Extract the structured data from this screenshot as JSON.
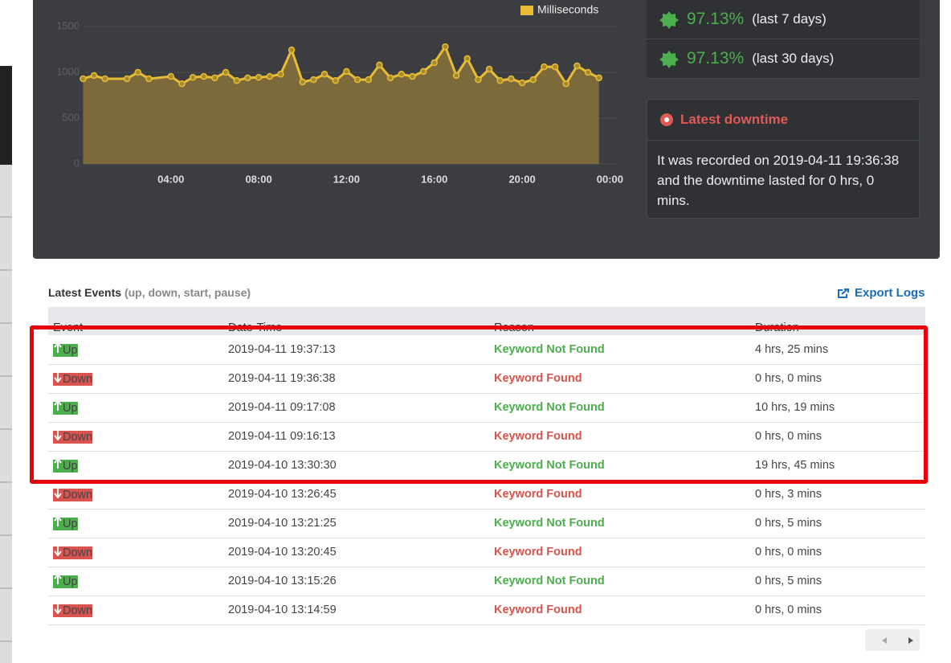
{
  "chart_data": {
    "type": "area",
    "series": [
      {
        "name": "Milliseconds",
        "color": "#e8bd35",
        "fill": "#7c6a3b",
        "values": [
          930,
          965,
          930,
          930,
          1000,
          930,
          955,
          875,
          945,
          955,
          940,
          1000,
          910,
          940,
          945,
          955,
          980,
          1245,
          895,
          920,
          980,
          910,
          1010,
          920,
          920,
          1080,
          940,
          980,
          955,
          1010,
          1105,
          1280,
          965,
          1150,
          920,
          1035,
          910,
          930,
          885,
          920,
          1060,
          1060,
          875,
          1070,
          1000,
          940
        ]
      }
    ],
    "x": [
      0,
      0.5,
      1,
      2,
      2.5,
      3,
      4,
      4.5,
      5,
      5.5,
      6,
      6.5,
      7,
      7.5,
      8,
      8.5,
      9,
      9.5,
      10,
      10.5,
      11,
      11.5,
      12,
      12.5,
      13,
      13.5,
      14,
      14.5,
      15,
      15.5,
      16,
      16.5,
      17,
      17.5,
      18,
      18.5,
      19,
      19.5,
      20,
      20.5,
      21,
      21.5,
      22,
      22.5,
      23,
      23.5
    ],
    "xlim": [
      0,
      24
    ],
    "xticks": [
      {
        "value": 4,
        "label": "04:00"
      },
      {
        "value": 8,
        "label": "08:00"
      },
      {
        "value": 12,
        "label": "12:00"
      },
      {
        "value": 16,
        "label": "16:00"
      },
      {
        "value": 20,
        "label": "20:00"
      },
      {
        "value": 24,
        "label": "00:00"
      }
    ],
    "ylim": [
      0,
      1500
    ],
    "yticks": [
      0,
      500,
      1000,
      1500
    ],
    "grid": true
  },
  "uptime": [
    {
      "value": "97.13%",
      "period": "(last 7 days)"
    },
    {
      "value": "97.13%",
      "period": "(last 30 days)"
    }
  ],
  "downtime": {
    "title": "Latest downtime",
    "text": "It was recorded on 2019-04-11 19:36:38 and the downtime lasted for 0 hrs, 0 mins."
  },
  "events": {
    "title": "Latest Events",
    "subtitle": "(up, down, start, pause)",
    "export": "Export Logs",
    "columns": [
      "Event",
      "Date-Time",
      "Reason",
      "Duration"
    ],
    "rows": [
      [
        "Up",
        "2019-04-11 19:37:13",
        "Keyword Not Found",
        "4 hrs, 25 mins"
      ],
      [
        "Down",
        "2019-04-11 19:36:38",
        "Keyword Found",
        "0 hrs, 0 mins"
      ],
      [
        "Up",
        "2019-04-11 09:17:08",
        "Keyword Not Found",
        "10 hrs, 19 mins"
      ],
      [
        "Down",
        "2019-04-11 09:16:13",
        "Keyword Found",
        "0 hrs, 0 mins"
      ],
      [
        "Up",
        "2019-04-10 13:30:30",
        "Keyword Not Found",
        "19 hrs, 45 mins"
      ],
      [
        "Down",
        "2019-04-10 13:26:45",
        "Keyword Found",
        "0 hrs, 3 mins"
      ],
      [
        "Up",
        "2019-04-10 13:21:25",
        "Keyword Not Found",
        "0 hrs, 5 mins"
      ],
      [
        "Down",
        "2019-04-10 13:20:45",
        "Keyword Found",
        "0 hrs, 0 mins"
      ],
      [
        "Up",
        "2019-04-10 13:15:26",
        "Keyword Not Found",
        "0 hrs, 5 mins"
      ],
      [
        "Down",
        "2019-04-10 13:14:59",
        "Keyword Found",
        "0 hrs, 0 mins"
      ]
    ]
  }
}
